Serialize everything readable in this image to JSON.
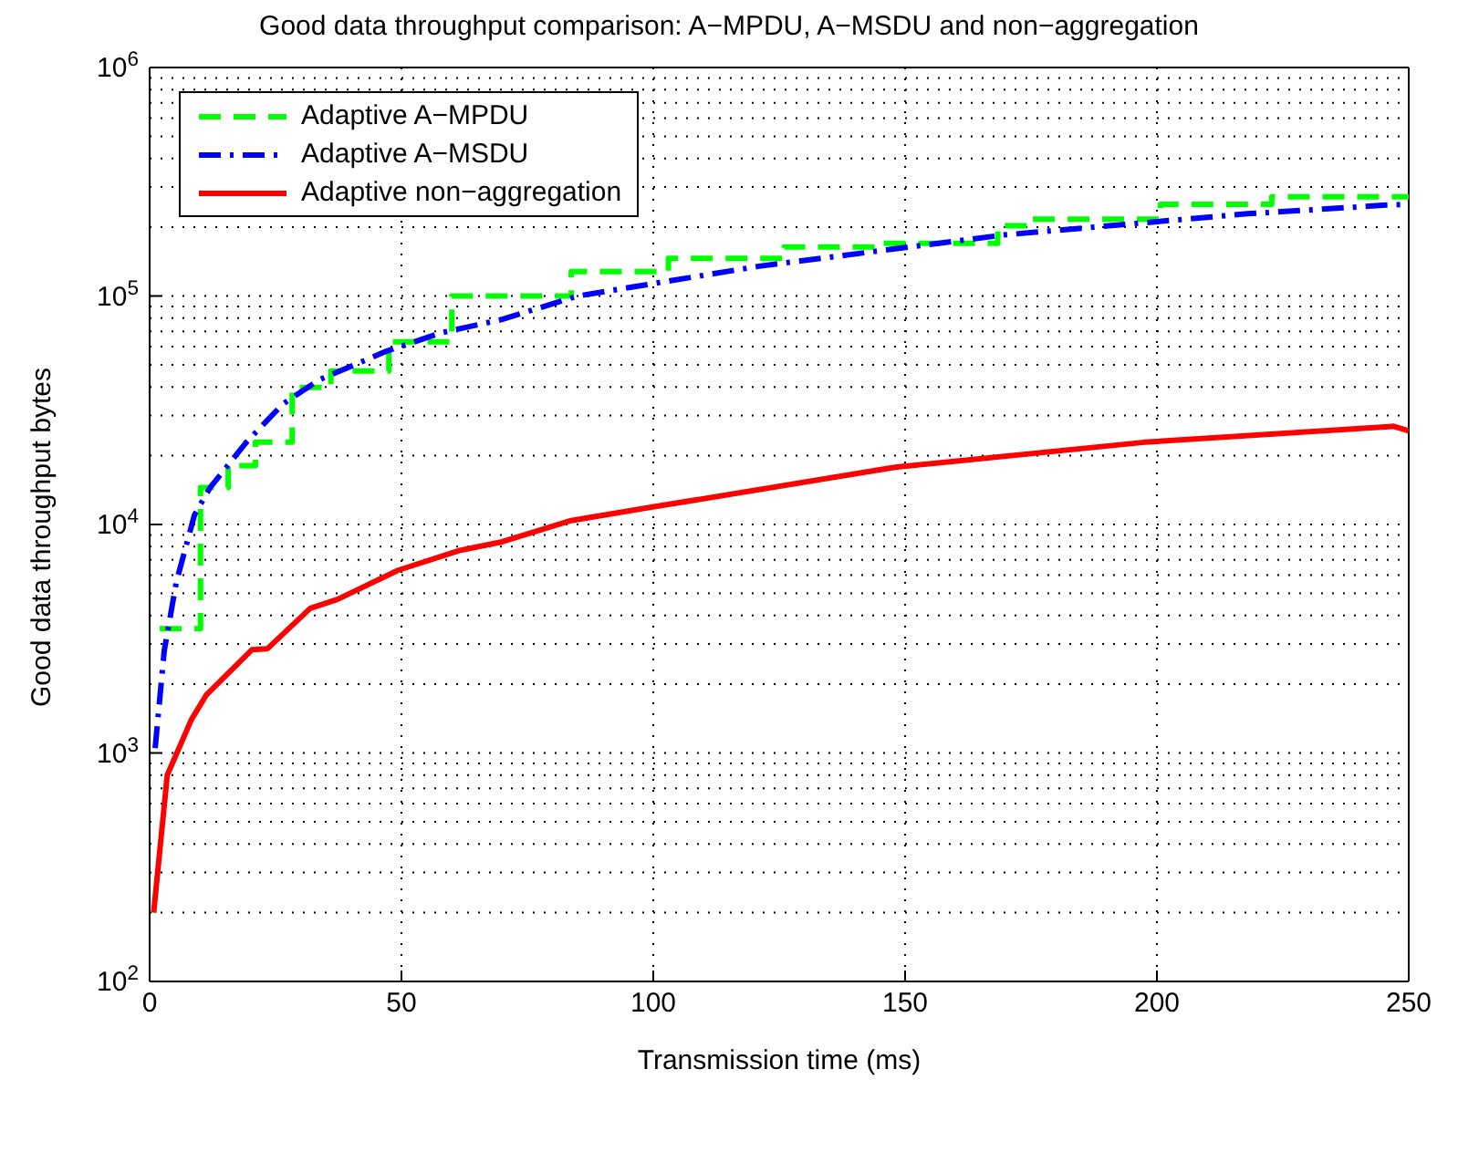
{
  "chart_data": {
    "type": "line",
    "title": "Good data throughput comparison: A−MPDU, A−MSDU and non−aggregation",
    "xlabel": "Transmission time (ms)",
    "ylabel": "Good data throughput bytes",
    "xlim": [
      0,
      250
    ],
    "xticks": [
      0,
      50,
      100,
      150,
      200,
      250
    ],
    "ylim": [
      100,
      1000000
    ],
    "yticks": [
      {
        "value": 100,
        "label": "10$^{2}$"
      },
      {
        "value": 1000,
        "label": "10$^{3}$"
      },
      {
        "value": 10000,
        "label": "10$^{4}$"
      },
      {
        "value": 100000,
        "label": "10$^{5}$"
      },
      {
        "value": 1000000,
        "label": "10$^{6}$"
      }
    ],
    "log": "y",
    "grid": true,
    "legend": "top left",
    "series": [
      {
        "name": "Adaptive A−MPDU",
        "type": "step",
        "color": "#00ff00",
        "line_style": "dashed",
        "x": [
          2,
          10.1,
          15.6,
          21,
          28.3,
          36,
          47.5,
          60,
          83.7,
          103,
          126,
          145,
          168.4,
          175,
          200.7,
          222.8,
          250
        ],
        "values": [
          3500,
          14500,
          18100,
          22900,
          39800,
          47000,
          63000,
          100000,
          128000,
          146000,
          164000,
          170000,
          203000,
          217000,
          252000,
          272000,
          272000
        ]
      },
      {
        "name": "Adaptive A−MSDU",
        "color": "#0000ff",
        "line_style": "dashdot",
        "x": [
          1.1,
          2.9,
          5.3,
          8.9,
          12,
          19.2,
          26.4,
          33.7,
          47,
          57.9,
          70,
          85,
          121,
          169.6,
          218,
          245.6,
          250
        ],
        "values": [
          1050,
          2800,
          5600,
          11000,
          14500,
          22900,
          33600,
          43000,
          57300,
          69000,
          79000,
          100000,
          135000,
          185000,
          229000,
          250000,
          252000
        ]
      },
      {
        "name": "Adaptive non−aggregation",
        "color": "#ff0000",
        "line_style": "solid",
        "x": [
          0.8,
          3.5,
          8.3,
          11.3,
          20.3,
          23.4,
          31.9,
          37.3,
          49.3,
          61.6,
          70,
          83.7,
          99.6,
          148,
          197.5,
          247,
          250
        ],
        "values": [
          200,
          800,
          1400,
          1800,
          2830,
          2860,
          4300,
          4700,
          6300,
          7700,
          8400,
          10400,
          11900,
          17800,
          22900,
          26900,
          25700
        ]
      }
    ]
  }
}
